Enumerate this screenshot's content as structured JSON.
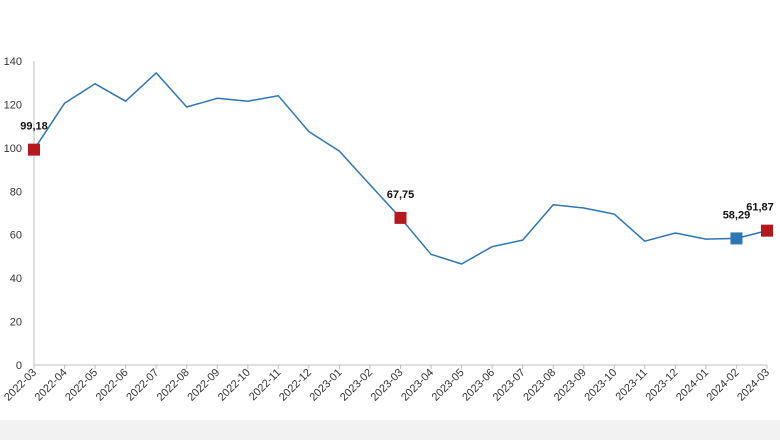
{
  "chart_data": {
    "type": "line",
    "title": "",
    "xlabel": "",
    "ylabel": "",
    "ylim": [
      0,
      140
    ],
    "yticks": [
      0,
      20,
      40,
      60,
      80,
      100,
      120,
      140
    ],
    "grid": false,
    "categories": [
      "2022-03",
      "2022-04",
      "2022-05",
      "2022-06",
      "2022-07",
      "2022-08",
      "2022-09",
      "2022-10",
      "2022-11",
      "2022-12",
      "2023-01",
      "2023-02",
      "2023-03",
      "2023-04",
      "2023-05",
      "2023-06",
      "2023-07",
      "2023-08",
      "2023-09",
      "2023-10",
      "2023-11",
      "2023-12",
      "2024-01",
      "2024-02",
      "2024-03"
    ],
    "series": [
      {
        "color": "#2e75b6",
        "values": [
          99.18,
          120.5,
          129.5,
          121.5,
          134.5,
          118.8,
          122.8,
          121.5,
          124.0,
          107.5,
          98.5,
          83.0,
          67.75,
          51.0,
          46.5,
          54.5,
          57.5,
          73.8,
          72.3,
          69.5,
          57.0,
          60.8,
          58.0,
          58.29,
          61.87
        ]
      }
    ],
    "markers": [
      {
        "index": 0,
        "label": "99,18",
        "color": "#b7181e"
      },
      {
        "index": 12,
        "label": "67,75",
        "color": "#b7181e"
      },
      {
        "index": 23,
        "label": "58,29",
        "color": "#2e75b6"
      },
      {
        "index": 24,
        "label": "61,87",
        "color": "#b7181e"
      }
    ],
    "axis_color": "#bfbfbf",
    "footer_band_color": "#f2f2f2"
  }
}
